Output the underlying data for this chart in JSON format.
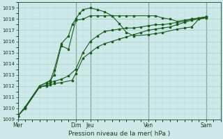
{
  "xlabel": "Pression niveau de la mer( hPa )",
  "bg_color": "#cce8e8",
  "grid_color_major": "#aacccc",
  "grid_color_minor": "#c0dede",
  "line_color": "#1a5c1a",
  "ylim": [
    1009,
    1019.5
  ],
  "xlim": [
    0,
    28
  ],
  "yticks": [
    1009,
    1010,
    1011,
    1012,
    1013,
    1014,
    1015,
    1016,
    1017,
    1018,
    1019
  ],
  "xtick_labels": [
    "Mer",
    "Dim",
    "Jeu",
    "Ven",
    "Sam"
  ],
  "xtick_positions": [
    0,
    8,
    10,
    18,
    26
  ],
  "vlines": [
    0,
    8,
    10,
    18,
    26
  ],
  "series": [
    {
      "x": [
        0,
        1,
        3,
        4,
        4.5,
        5,
        6,
        7.5,
        8,
        9,
        10,
        11,
        12,
        13,
        14,
        15,
        16,
        17,
        18,
        19,
        20,
        21,
        22,
        23,
        24,
        25,
        26
      ],
      "y": [
        1009.3,
        1010.0,
        1011.9,
        1012.0,
        1012.1,
        1012.2,
        1012.3,
        1012.5,
        1013.1,
        1014.5,
        1015.0,
        1015.5,
        1015.8,
        1016.0,
        1016.2,
        1016.4,
        1016.6,
        1016.8,
        1017.0,
        1017.1,
        1017.2,
        1017.3,
        1017.5,
        1017.7,
        1017.9,
        1018.0,
        1018.1
      ]
    },
    {
      "x": [
        0,
        1,
        3,
        4,
        4.5,
        5,
        6,
        7,
        8,
        9,
        10,
        11,
        12,
        13,
        14,
        15,
        16,
        17,
        18,
        19,
        20,
        21,
        22,
        23,
        24,
        25,
        26
      ],
      "y": [
        1009.3,
        1010.0,
        1011.9,
        1012.1,
        1012.3,
        1012.4,
        1012.6,
        1012.9,
        1013.5,
        1015.0,
        1016.0,
        1016.5,
        1016.9,
        1017.0,
        1017.1,
        1017.2,
        1017.2,
        1017.3,
        1017.4,
        1017.5,
        1017.5,
        1017.6,
        1017.7,
        1017.8,
        1018.0,
        1018.1,
        1018.2
      ]
    },
    {
      "x": [
        0,
        1,
        3,
        4,
        4.5,
        5,
        6,
        7,
        8,
        9,
        10,
        11,
        12,
        13,
        14,
        15,
        16,
        18,
        19,
        20,
        22,
        23,
        24,
        25,
        26
      ],
      "y": [
        1009.3,
        1010.1,
        1012.0,
        1012.3,
        1012.5,
        1013.0,
        1015.6,
        1015.3,
        1017.9,
        1018.0,
        1018.3,
        1018.3,
        1018.3,
        1018.3,
        1017.6,
        1016.8,
        1016.5,
        1016.6,
        1016.7,
        1016.8,
        1017.1,
        1017.2,
        1017.3,
        1018.0,
        1018.2
      ]
    },
    {
      "x": [
        0,
        1,
        3,
        4,
        4.5,
        5,
        6,
        7,
        7.5,
        8,
        8.5,
        9,
        10,
        11,
        12,
        13,
        14,
        15,
        16,
        18,
        19,
        20,
        21,
        22,
        23,
        24,
        25,
        26
      ],
      "y": [
        1009.3,
        1010.1,
        1012.0,
        1012.3,
        1012.5,
        1013.4,
        1015.8,
        1016.5,
        1017.5,
        1018.0,
        1018.5,
        1018.85,
        1019.0,
        1018.85,
        1018.65,
        1018.3,
        1018.3,
        1018.3,
        1018.3,
        1018.3,
        1018.3,
        1018.1,
        1018.0,
        1017.8,
        1017.9,
        1018.0,
        1018.1,
        1018.2
      ]
    }
  ]
}
